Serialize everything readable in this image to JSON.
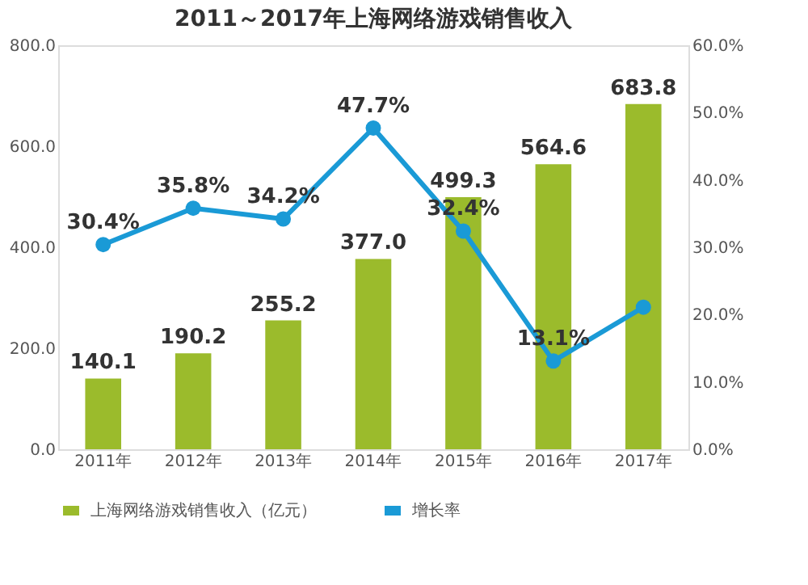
{
  "chart_data": {
    "type": "bar",
    "title": "2011～2017年上海网络游戏销售收入",
    "categories": [
      "2011年",
      "2012年",
      "2013年",
      "2014年",
      "2015年",
      "2016年",
      "2017年"
    ],
    "series": [
      {
        "name": "上海网络游戏销售收入（亿元）",
        "color": "#9bbb2c",
        "values": [
          140.1,
          190.2,
          255.2,
          377.0,
          499.3,
          564.6,
          683.8
        ],
        "value_labels": [
          "140.1",
          "190.2",
          "255.2",
          "377.0",
          "499.3",
          "564.6",
          "683.8"
        ]
      },
      {
        "name": "增长率",
        "type": "line",
        "axis": "y2",
        "color": "#1a9ad6",
        "marker": "circle",
        "values": [
          30.4,
          35.8,
          34.2,
          47.7,
          32.4,
          13.1,
          21.1
        ],
        "value_labels": [
          "30.4%",
          "35.8%",
          "34.2%",
          "47.7%",
          "32.4%",
          "13.1%",
          null
        ]
      }
    ],
    "ylim": [
      0,
      800
    ],
    "yticks": [
      {
        "value": 0,
        "label": "0.0"
      },
      {
        "value": 200,
        "label": "200.0"
      },
      {
        "value": 400,
        "label": "400.0"
      },
      {
        "value": 600,
        "label": "600.0"
      },
      {
        "value": 800,
        "label": "800.0"
      }
    ],
    "y2lim": [
      0,
      60
    ],
    "y2ticks": [
      {
        "value": 0,
        "label": "0.0%"
      },
      {
        "value": 10,
        "label": "10.0%"
      },
      {
        "value": 20,
        "label": "20.0%"
      },
      {
        "value": 30,
        "label": "30.0%"
      },
      {
        "value": 40,
        "label": "40.0%"
      },
      {
        "value": 50,
        "label": "50.0%"
      },
      {
        "value": 60,
        "label": "60.0%"
      }
    ],
    "grid": false,
    "legend": "bottom"
  }
}
